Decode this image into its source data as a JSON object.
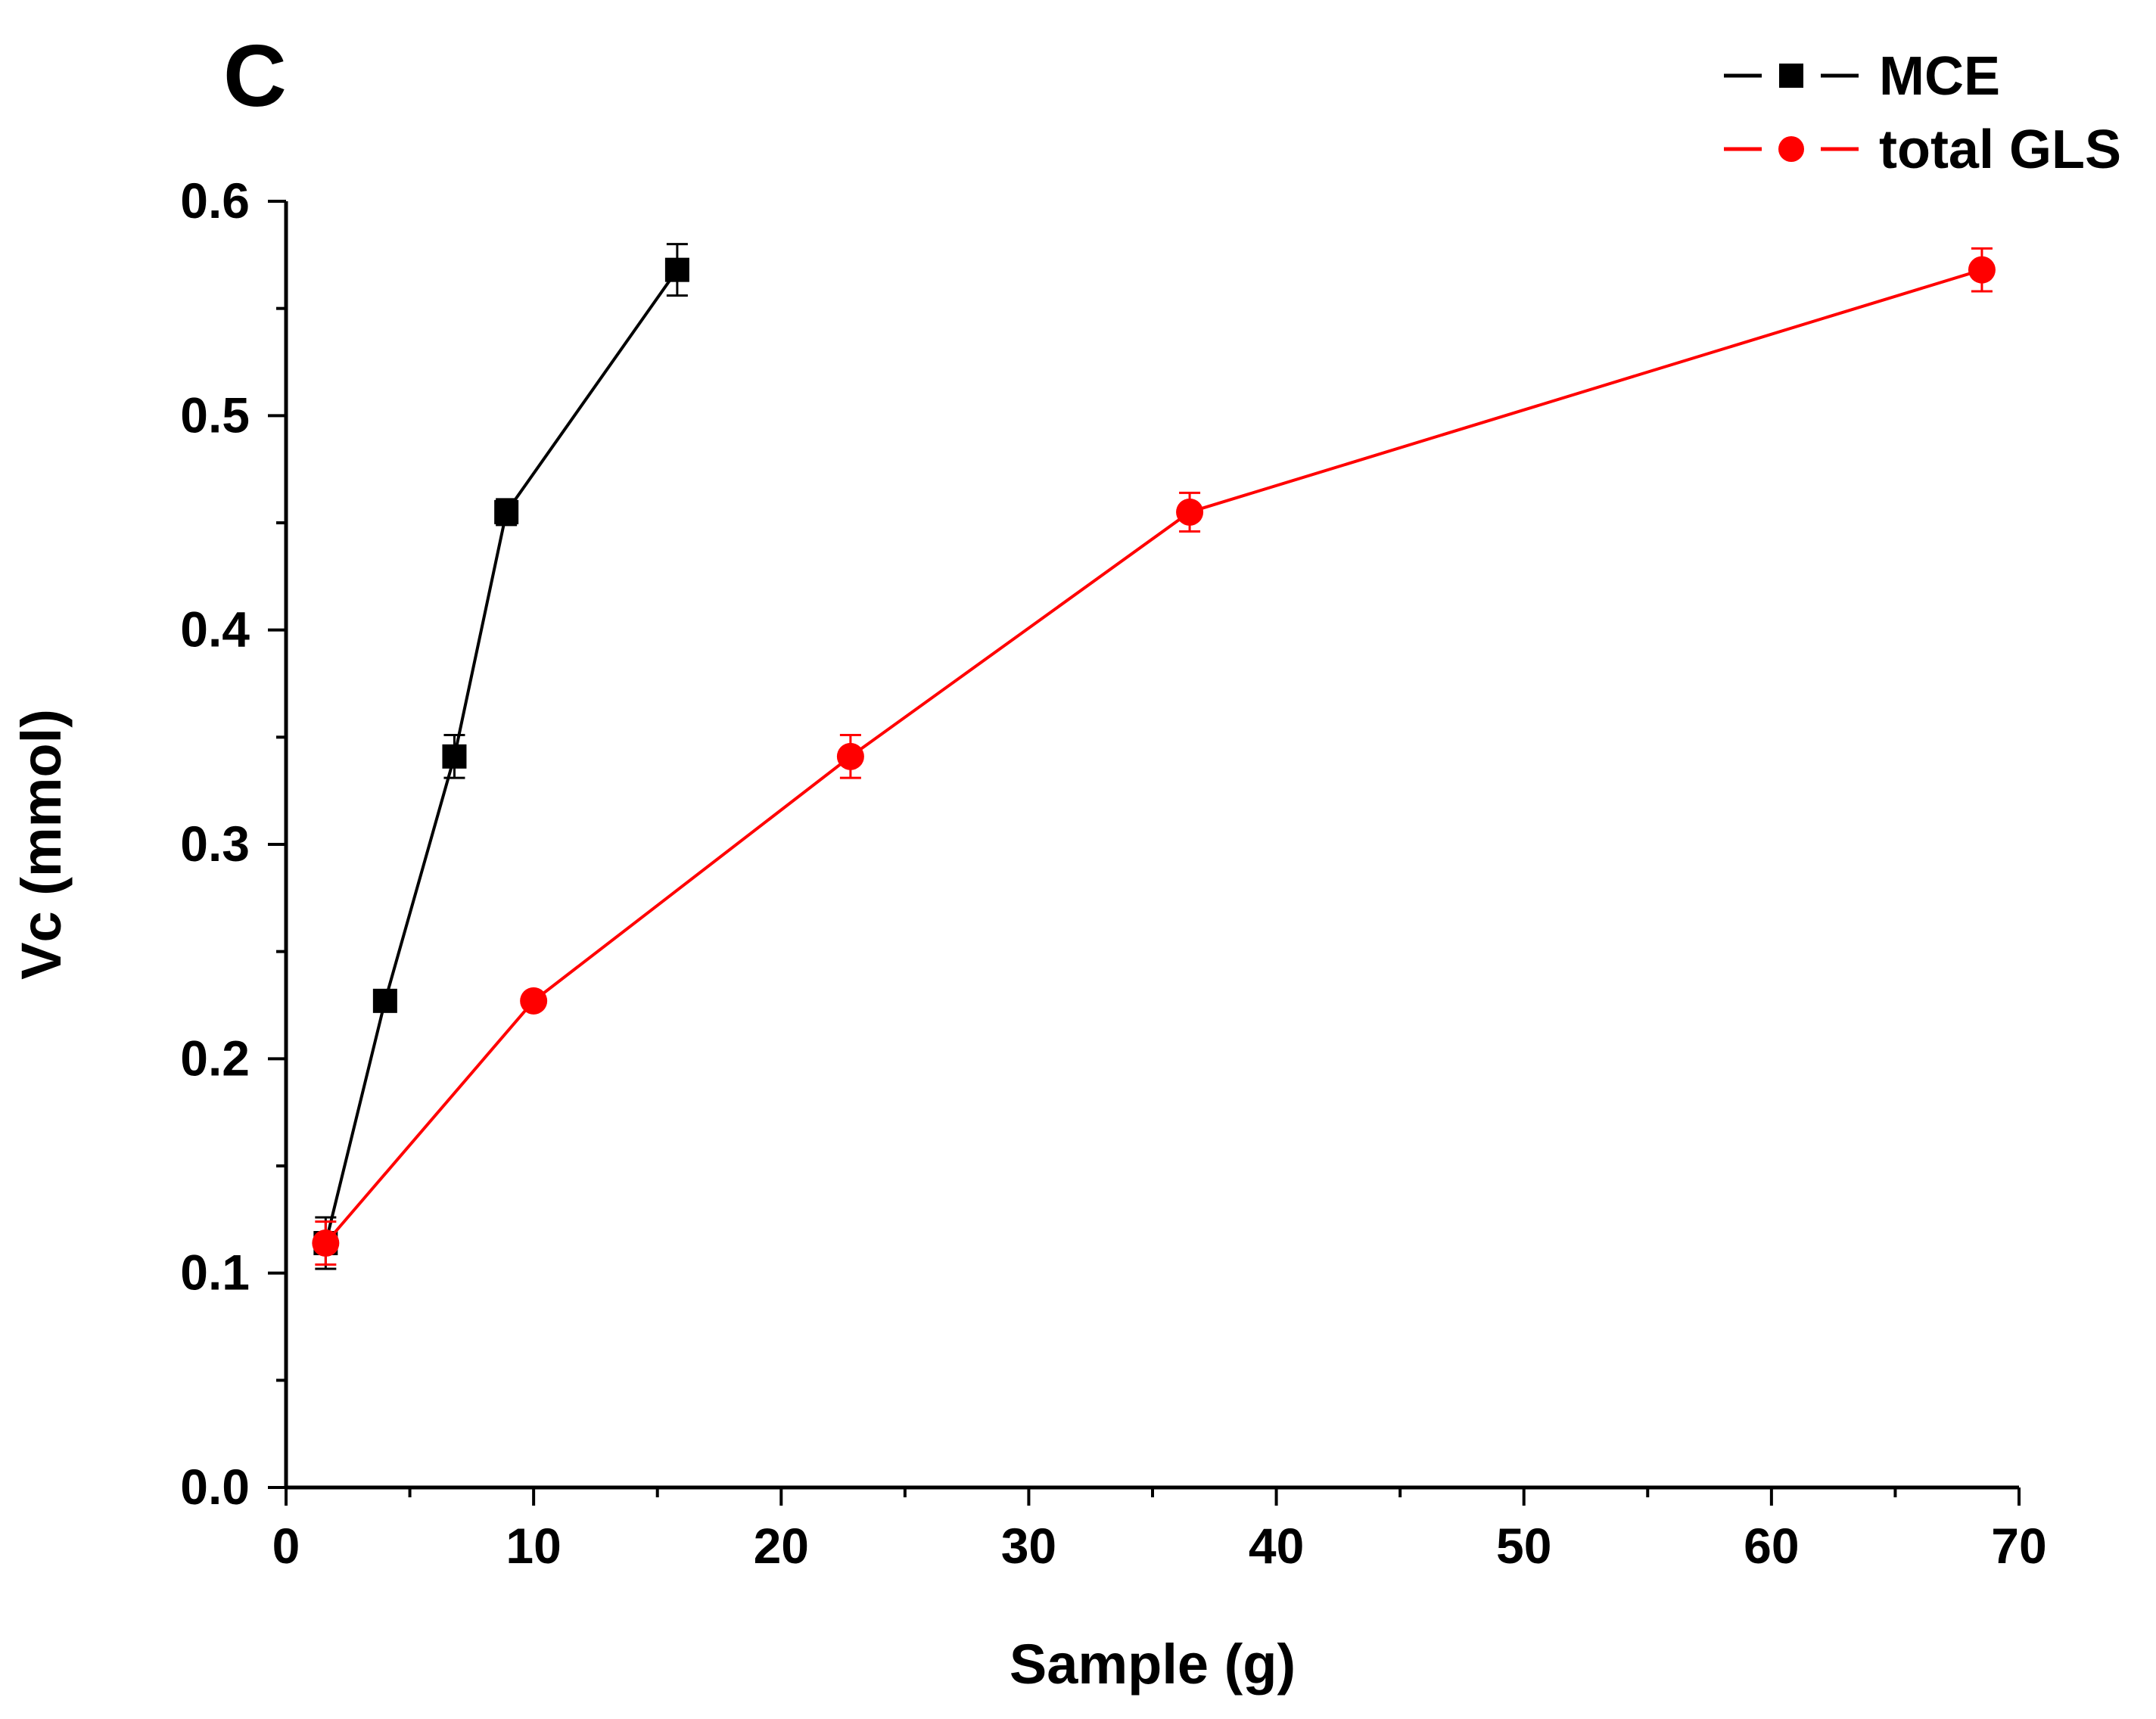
{
  "panel_label": "C",
  "chart_data": {
    "type": "line",
    "title": "",
    "xlabel": "Sample (g)",
    "ylabel": "Vc (mmol)",
    "xlim": [
      0,
      70
    ],
    "ylim": [
      0.0,
      0.6
    ],
    "xticks": [
      0,
      10,
      20,
      30,
      40,
      50,
      60,
      70
    ],
    "xtick_labels": [
      "0",
      "10",
      "20",
      "30",
      "40",
      "50",
      "60",
      "70"
    ],
    "yticks": [
      0.0,
      0.1,
      0.2,
      0.3,
      0.4,
      0.5,
      0.6
    ],
    "ytick_labels": [
      "0.0",
      "0.1",
      "0.2",
      "0.3",
      "0.4",
      "0.5",
      "0.6"
    ],
    "grid": false,
    "legend_position": "top-right",
    "series": [
      {
        "name": "MCE",
        "color": "#000000",
        "marker": "square",
        "x": [
          1.6,
          4.0,
          6.8,
          8.9,
          15.8
        ],
        "y": [
          0.114,
          0.227,
          0.341,
          0.455,
          0.568
        ],
        "err": [
          0.012,
          0.0,
          0.01,
          0.006,
          0.012
        ]
      },
      {
        "name": "total GLS",
        "color": "#ff0000",
        "marker": "circle",
        "x": [
          1.6,
          10.0,
          22.8,
          36.5,
          68.5
        ],
        "y": [
          0.114,
          0.227,
          0.341,
          0.455,
          0.568
        ],
        "err": [
          0.01,
          0.0,
          0.01,
          0.009,
          0.01
        ]
      }
    ]
  }
}
